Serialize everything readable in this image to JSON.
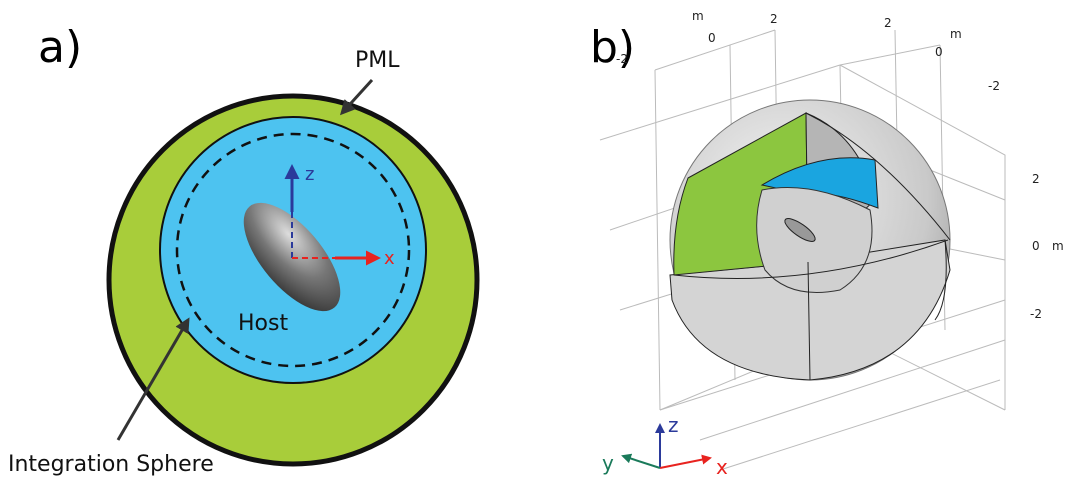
{
  "panel_a": {
    "label": "a)",
    "pml": "PML",
    "host": "Host",
    "integration_sphere": "Integration Sphere",
    "axis_z": "z",
    "axis_x": "x"
  },
  "panel_b": {
    "label": "b)",
    "tick_labels": [
      "m",
      "2",
      "0",
      "-2",
      "2",
      "m",
      "0",
      "-2",
      "2",
      "0",
      "m",
      "-2"
    ],
    "axis_z": "z",
    "axis_y": "y",
    "axis_x": "x"
  }
}
